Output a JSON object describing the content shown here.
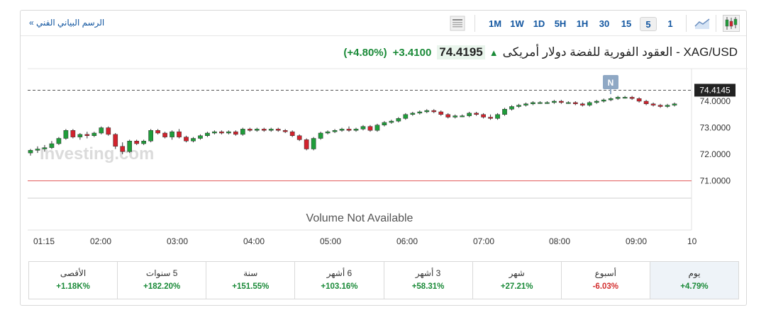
{
  "toolbar": {
    "tech_link": "الرسم البياني الفني",
    "tech_chevron": "»",
    "timeframes": [
      "1M",
      "1W",
      "1D",
      "5H",
      "1H",
      "30",
      "15",
      "5",
      "1"
    ],
    "active_timeframe": "5"
  },
  "header": {
    "instrument": "XAG/USD - العقود الفورية للفضة دولار أمريكى",
    "price": "74.4195",
    "change_abs": "+3.4100",
    "change_pct": "(+4.80%)"
  },
  "chart_data": {
    "type": "candlestick",
    "current_price_label": "74.4145",
    "current_marker": "N",
    "ref_line_value": 71.0,
    "volume_text": "Volume Not Available",
    "watermark": "Investing.com",
    "y_ticks": [
      "74.0000",
      "73.0000",
      "72.0000",
      "71.0000"
    ],
    "y_tick_values": [
      74,
      73,
      72,
      71
    ],
    "x_ticks": [
      "01:15",
      "02:00",
      "03:00",
      "04:00",
      "05:00",
      "06:00",
      "07:00",
      "08:00",
      "09:00",
      "10"
    ],
    "ylim": [
      70.0,
      74.75
    ],
    "series": [
      [
        72.05,
        72.2,
        71.95,
        72.15
      ],
      [
        72.15,
        72.3,
        72.05,
        72.2
      ],
      [
        72.2,
        72.35,
        72.1,
        72.25
      ],
      [
        72.25,
        72.5,
        72.2,
        72.4
      ],
      [
        72.4,
        72.65,
        72.35,
        72.6
      ],
      [
        72.6,
        72.95,
        72.55,
        72.9
      ],
      [
        72.9,
        72.95,
        72.6,
        72.65
      ],
      [
        72.65,
        72.8,
        72.55,
        72.75
      ],
      [
        72.75,
        72.85,
        72.6,
        72.7
      ],
      [
        72.7,
        72.85,
        72.65,
        72.8
      ],
      [
        72.8,
        73.05,
        72.75,
        73.0
      ],
      [
        73.0,
        73.05,
        72.7,
        72.75
      ],
      [
        72.75,
        72.8,
        72.2,
        72.3
      ],
      [
        72.3,
        72.45,
        72.0,
        72.1
      ],
      [
        72.1,
        72.55,
        72.05,
        72.5
      ],
      [
        72.5,
        72.55,
        72.35,
        72.4
      ],
      [
        72.4,
        72.55,
        72.35,
        72.5
      ],
      [
        72.5,
        72.95,
        72.45,
        72.9
      ],
      [
        72.9,
        72.95,
        72.75,
        72.8
      ],
      [
        72.8,
        72.85,
        72.6,
        72.65
      ],
      [
        72.65,
        72.9,
        72.55,
        72.85
      ],
      [
        72.85,
        72.95,
        72.6,
        72.65
      ],
      [
        72.65,
        72.7,
        72.45,
        72.5
      ],
      [
        72.5,
        72.65,
        72.45,
        72.6
      ],
      [
        72.6,
        72.75,
        72.55,
        72.7
      ],
      [
        72.7,
        72.85,
        72.65,
        72.8
      ],
      [
        72.8,
        72.9,
        72.75,
        72.85
      ],
      [
        72.85,
        72.9,
        72.75,
        72.8
      ],
      [
        72.8,
        72.9,
        72.75,
        72.85
      ],
      [
        72.85,
        72.9,
        72.7,
        72.75
      ],
      [
        72.75,
        73.0,
        72.7,
        72.95
      ],
      [
        72.95,
        73.0,
        72.85,
        72.9
      ],
      [
        72.9,
        73.0,
        72.85,
        72.95
      ],
      [
        72.95,
        73.0,
        72.85,
        72.9
      ],
      [
        72.9,
        73.0,
        72.85,
        72.95
      ],
      [
        72.95,
        73.0,
        72.85,
        72.9
      ],
      [
        72.9,
        72.95,
        72.8,
        72.85
      ],
      [
        72.85,
        72.9,
        72.65,
        72.7
      ],
      [
        72.7,
        72.75,
        72.5,
        72.55
      ],
      [
        72.55,
        72.6,
        72.15,
        72.2
      ],
      [
        72.2,
        72.65,
        72.15,
        72.6
      ],
      [
        72.6,
        72.85,
        72.55,
        72.8
      ],
      [
        72.8,
        72.9,
        72.75,
        72.85
      ],
      [
        72.85,
        72.95,
        72.8,
        72.9
      ],
      [
        72.9,
        73.0,
        72.85,
        72.95
      ],
      [
        72.95,
        73.05,
        72.85,
        72.9
      ],
      [
        72.9,
        73.0,
        72.85,
        72.95
      ],
      [
        72.95,
        73.1,
        72.9,
        73.05
      ],
      [
        73.05,
        73.1,
        72.85,
        72.9
      ],
      [
        72.9,
        73.15,
        72.85,
        73.1
      ],
      [
        73.1,
        73.25,
        73.05,
        73.2
      ],
      [
        73.2,
        73.3,
        73.15,
        73.25
      ],
      [
        73.25,
        73.4,
        73.2,
        73.35
      ],
      [
        73.35,
        73.55,
        73.3,
        73.5
      ],
      [
        73.5,
        73.6,
        73.45,
        73.55
      ],
      [
        73.55,
        73.65,
        73.5,
        73.6
      ],
      [
        73.6,
        73.7,
        73.55,
        73.65
      ],
      [
        73.65,
        73.7,
        73.55,
        73.6
      ],
      [
        73.6,
        73.65,
        73.45,
        73.5
      ],
      [
        73.5,
        73.55,
        73.35,
        73.4
      ],
      [
        73.4,
        73.5,
        73.35,
        73.45
      ],
      [
        73.45,
        73.5,
        73.4,
        73.45
      ],
      [
        73.45,
        73.6,
        73.4,
        73.55
      ],
      [
        73.55,
        73.6,
        73.45,
        73.5
      ],
      [
        73.5,
        73.55,
        73.35,
        73.4
      ],
      [
        73.4,
        73.5,
        73.3,
        73.35
      ],
      [
        73.35,
        73.55,
        73.3,
        73.5
      ],
      [
        73.5,
        73.75,
        73.45,
        73.7
      ],
      [
        73.7,
        73.85,
        73.65,
        73.8
      ],
      [
        73.8,
        73.9,
        73.75,
        73.85
      ],
      [
        73.85,
        73.95,
        73.8,
        73.9
      ],
      [
        73.9,
        74.0,
        73.85,
        73.95
      ],
      [
        73.95,
        74.0,
        73.9,
        73.95
      ],
      [
        73.95,
        74.0,
        73.9,
        73.95
      ],
      [
        73.95,
        74.05,
        73.9,
        74.0
      ],
      [
        74.0,
        74.05,
        73.9,
        73.95
      ],
      [
        73.95,
        74.0,
        73.9,
        73.95
      ],
      [
        73.95,
        74.0,
        73.85,
        73.9
      ],
      [
        73.9,
        73.95,
        73.8,
        73.85
      ],
      [
        73.85,
        74.0,
        73.8,
        73.95
      ],
      [
        73.95,
        74.05,
        73.9,
        74.0
      ],
      [
        74.0,
        74.1,
        73.95,
        74.05
      ],
      [
        74.05,
        74.15,
        74.0,
        74.1
      ],
      [
        74.1,
        74.2,
        74.05,
        74.15
      ],
      [
        74.15,
        74.2,
        74.1,
        74.15
      ],
      [
        74.15,
        74.2,
        74.05,
        74.1
      ],
      [
        74.1,
        74.15,
        73.95,
        74.0
      ],
      [
        74.0,
        74.05,
        73.85,
        73.9
      ],
      [
        73.9,
        73.95,
        73.8,
        73.85
      ],
      [
        73.85,
        73.9,
        73.75,
        73.8
      ],
      [
        73.8,
        73.9,
        73.75,
        73.85
      ],
      [
        73.85,
        73.95,
        73.8,
        73.9
      ]
    ]
  },
  "stats": [
    {
      "label": "يوم",
      "value": "+4.79%",
      "dir": "pos",
      "active": true
    },
    {
      "label": "أسبوع",
      "value": "-6.03%",
      "dir": "neg",
      "active": false
    },
    {
      "label": "شهر",
      "value": "+27.21%",
      "dir": "pos",
      "active": false
    },
    {
      "label": "3 أشهر",
      "value": "+58.31%",
      "dir": "pos",
      "active": false
    },
    {
      "label": "6 أشهر",
      "value": "+103.16%",
      "dir": "pos",
      "active": false
    },
    {
      "label": "سنة",
      "value": "+151.55%",
      "dir": "pos",
      "active": false
    },
    {
      "label": "5 سنوات",
      "value": "+182.20%",
      "dir": "pos",
      "active": false
    },
    {
      "label": "الأقصى",
      "value": "+1.18K%",
      "dir": "pos",
      "active": false
    }
  ],
  "colors": {
    "up": "#1f9d3a",
    "down": "#d2222d",
    "ref_line": "#e25c5c",
    "accent": "#1256a0"
  }
}
